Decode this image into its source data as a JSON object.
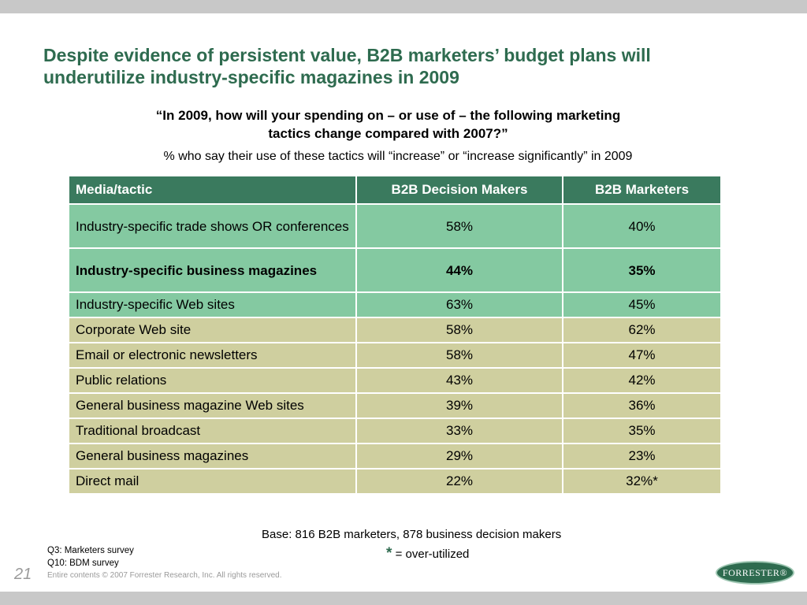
{
  "slide": {
    "title_line1": "Despite evidence of persistent value, B2B marketers’ budget plans will",
    "title_line2": "underutilize industry-specific magazines in 2009",
    "question_line1": "“In 2009, how will your spending on – or use of – the following marketing",
    "question_line2": "tactics change compared with 2007?”",
    "subtitle": "% who say their use of these tactics will “increase” or “increase significantly” in 2009"
  },
  "table": {
    "headers": [
      "Media/tactic",
      "B2B Decision Makers",
      "B2B Marketers"
    ],
    "rows": [
      {
        "tactic": "Industry-specific trade shows OR conferences",
        "bdm": "58%",
        "marketers": "40%"
      },
      {
        "tactic": "Industry-specific business magazines",
        "bdm": "44%",
        "marketers": "35%"
      },
      {
        "tactic": "Industry-specific Web sites",
        "bdm": "63%",
        "marketers": "45%"
      },
      {
        "tactic": "Corporate Web site",
        "bdm": "58%",
        "marketers": "62%"
      },
      {
        "tactic": "Email or electronic newsletters",
        "bdm": "58%",
        "marketers": "47%"
      },
      {
        "tactic": "Public relations",
        "bdm": "43%",
        "marketers": "42%"
      },
      {
        "tactic": "General business magazine Web sites",
        "bdm": "39%",
        "marketers": "36%"
      },
      {
        "tactic": "Traditional broadcast",
        "bdm": "33%",
        "marketers": "35%"
      },
      {
        "tactic": "General business magazines",
        "bdm": "29%",
        "marketers": "23%"
      },
      {
        "tactic": "Direct mail",
        "bdm": "22%",
        "marketers": "32%*"
      }
    ]
  },
  "footer": {
    "base": "Base:  816 B2B marketers, 878 business decision makers",
    "star": "*",
    "star_note": "= over-utilized",
    "source1": "Q3: Marketers survey",
    "source2": "Q10: BDM survey",
    "page_number": "21",
    "copyright": "Entire contents © 2007  Forrester Research, Inc. All rights reserved.",
    "logo_text": "FORRESTER®"
  },
  "colors": {
    "title": "#2e6b4f",
    "header_bg": "#3a7a5e",
    "highlight_rows": "#84c9a1",
    "other_rows": "#cfcf9f"
  }
}
